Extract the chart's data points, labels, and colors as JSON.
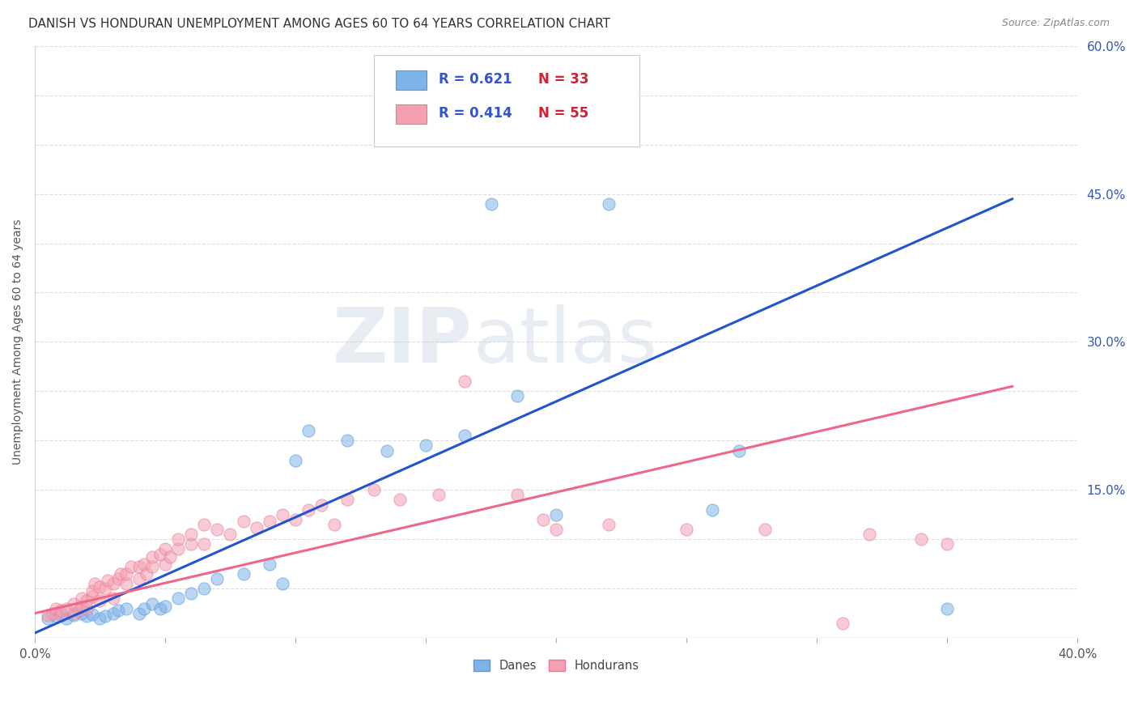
{
  "title": "DANISH VS HONDURAN UNEMPLOYMENT AMONG AGES 60 TO 64 YEARS CORRELATION CHART",
  "source": "Source: ZipAtlas.com",
  "ylabel": "Unemployment Among Ages 60 to 64 years",
  "xlim": [
    0.0,
    0.4
  ],
  "ylim": [
    0.0,
    0.6
  ],
  "danes_x": [
    0.005,
    0.008,
    0.01,
    0.012,
    0.015,
    0.018,
    0.02,
    0.022,
    0.025,
    0.027,
    0.03,
    0.032,
    0.035,
    0.04,
    0.042,
    0.045,
    0.048,
    0.05,
    0.055,
    0.06,
    0.065,
    0.07,
    0.08,
    0.09,
    0.095,
    0.1,
    0.105,
    0.12,
    0.135,
    0.15,
    0.165,
    0.175,
    0.185,
    0.2,
    0.22,
    0.26,
    0.27,
    0.35
  ],
  "danes_y": [
    0.02,
    0.022,
    0.025,
    0.02,
    0.023,
    0.025,
    0.022,
    0.024,
    0.02,
    0.022,
    0.025,
    0.028,
    0.03,
    0.025,
    0.03,
    0.035,
    0.03,
    0.032,
    0.04,
    0.045,
    0.05,
    0.06,
    0.065,
    0.075,
    0.055,
    0.18,
    0.21,
    0.2,
    0.19,
    0.195,
    0.205,
    0.44,
    0.245,
    0.125,
    0.44,
    0.13,
    0.19,
    0.03
  ],
  "hondurans_x": [
    0.005,
    0.007,
    0.008,
    0.01,
    0.01,
    0.012,
    0.015,
    0.015,
    0.017,
    0.018,
    0.018,
    0.02,
    0.02,
    0.022,
    0.022,
    0.023,
    0.025,
    0.025,
    0.027,
    0.028,
    0.03,
    0.03,
    0.032,
    0.033,
    0.035,
    0.035,
    0.037,
    0.04,
    0.04,
    0.042,
    0.043,
    0.045,
    0.045,
    0.048,
    0.05,
    0.05,
    0.052,
    0.055,
    0.055,
    0.06,
    0.06,
    0.065,
    0.065,
    0.07,
    0.075,
    0.08,
    0.085,
    0.09,
    0.095,
    0.1,
    0.105,
    0.11,
    0.115,
    0.12,
    0.13,
    0.14,
    0.155,
    0.165,
    0.185,
    0.195,
    0.2,
    0.22,
    0.25,
    0.28,
    0.31,
    0.32,
    0.34,
    0.35
  ],
  "hondurans_y": [
    0.023,
    0.025,
    0.03,
    0.023,
    0.028,
    0.03,
    0.025,
    0.035,
    0.028,
    0.032,
    0.04,
    0.03,
    0.038,
    0.042,
    0.048,
    0.055,
    0.038,
    0.052,
    0.05,
    0.058,
    0.04,
    0.055,
    0.06,
    0.065,
    0.055,
    0.065,
    0.072,
    0.06,
    0.072,
    0.075,
    0.065,
    0.072,
    0.082,
    0.085,
    0.075,
    0.09,
    0.082,
    0.09,
    0.1,
    0.095,
    0.105,
    0.095,
    0.115,
    0.11,
    0.105,
    0.118,
    0.112,
    0.118,
    0.125,
    0.12,
    0.13,
    0.135,
    0.115,
    0.14,
    0.15,
    0.14,
    0.145,
    0.26,
    0.145,
    0.12,
    0.11,
    0.115,
    0.11,
    0.11,
    0.015,
    0.105,
    0.1,
    0.095
  ],
  "danes_color": "#7EB3E8",
  "hondurans_color": "#F4A0B0",
  "danes_line_color": "#2255CC",
  "hondurans_line_color": "#EE6688",
  "danes_R": 0.621,
  "danes_N": 33,
  "hondurans_R": 0.414,
  "hondurans_N": 55,
  "danes_trend_x0": 0.0,
  "danes_trend_y0": 0.005,
  "danes_trend_x1": 0.375,
  "danes_trend_y1": 0.445,
  "hondurans_trend_x0": 0.0,
  "hondurans_trend_y0": 0.025,
  "hondurans_trend_x1": 0.375,
  "hondurans_trend_y1": 0.255,
  "watermark_zip": "ZIP",
  "watermark_atlas": "atlas",
  "background_color": "#FFFFFF",
  "grid_color": "#DDDDDD",
  "title_fontsize": 11,
  "label_fontsize": 10,
  "tick_fontsize": 11,
  "ytick_right_labels": [
    "60.0%",
    "45.0%",
    "30.0%",
    "15.0%"
  ],
  "ytick_right_positions": [
    0.6,
    0.45,
    0.3,
    0.15
  ],
  "legend_R_color": "#3355CC",
  "legend_N_color": "#CC2233"
}
